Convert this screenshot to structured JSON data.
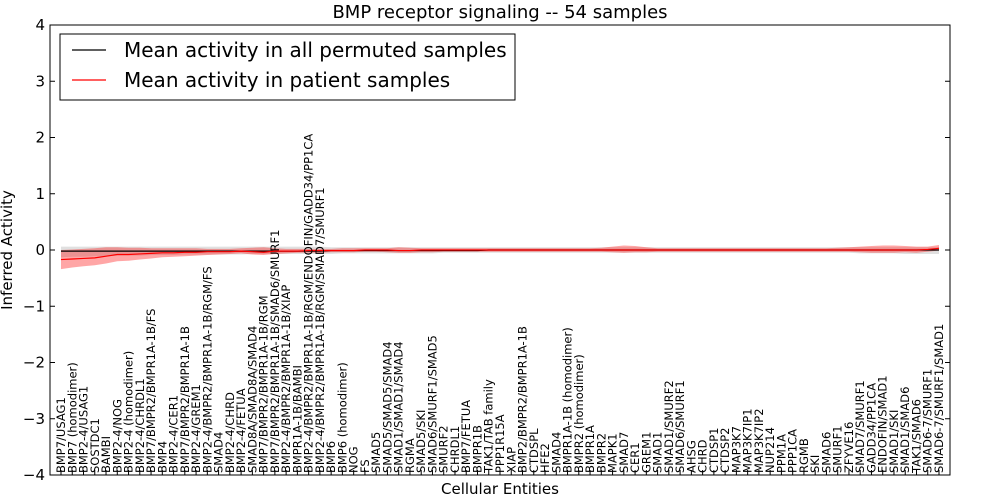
{
  "chart_data": {
    "type": "line",
    "title": "BMP receptor signaling -- 54 samples",
    "xlabel": "Cellular Entities",
    "ylabel": "Inferred Activity",
    "ylim": [
      -4,
      4
    ],
    "yticks": [
      -4,
      -3,
      -2,
      -1,
      0,
      1,
      2,
      3,
      4
    ],
    "legend_position": "top-left",
    "colors": {
      "permuted": "#000000",
      "patient": "#ff0000",
      "permuted_band": "#bbbbbb",
      "patient_band": "#ff0000"
    },
    "categories": [
      "BMP7/USAG1",
      "BMP7 (homodimer)",
      "BMP2-4/USAG1",
      "SOSTDC1",
      "BAMBI",
      "BMP2-4/NOG",
      "BMP2-4 (homodimer)",
      "BMP2-4/CHRDL1",
      "BMP7/BMPR2/BMPR1A-1B/FS",
      "BMP4",
      "BMP2-4/CER1",
      "BMP7/BMPR2/BMPR1A-1B",
      "BMP2-4/GREM1",
      "BMP2-4/BMPR2/BMPR1A-1B/RGM/FS",
      "SMAD4",
      "BMP2-4/CHRD",
      "BMP2-4/FETUA",
      "SMAD8A/SMAD8A/SMAD4",
      "BMP7/BMPR2/BMPR1A-1B/RGM",
      "BMP7/BMPR2/BMPR1A-1B/SMAD6/SMURF1",
      "BMP2-4/BMPR2/BMPR1A-1B/XIAP",
      "BMPR1A-1B/BAMBI",
      "BMP2-4/BMPR2/BMPR1A-1B/RGM/ENDOFIN/GADD34/PP1CA",
      "BMP2-4/BMPR2/BMPR1A-1B/RGM/SMAD7/SMURF1",
      "BMP6",
      "BMP6 (homodimer)",
      "NOG",
      "FS",
      "SMAD5",
      "SMAD5/SMAD5/SMAD4",
      "SMAD1/SMAD1/SMAD4",
      "RGMA",
      "SMAD5/SKI",
      "SMAD6/SMURF1/SMAD5",
      "SMURF2",
      "CHRDL1",
      "BMP7/FETUA",
      "BMPR1B",
      "TAK1/TAB family",
      "PPP1R15A",
      "XIAP",
      "BMP2/BMPR2/BMPR1A-1B",
      "CTDSPL",
      "HFE2",
      "SMAD4",
      "BMPR1A-1B (homodimer)",
      "BMPR2 (homodimer)",
      "BMPR1A",
      "BMPR2",
      "MAPK1",
      "SMAD7",
      "CER1",
      "GREM1",
      "SMAD1",
      "SMAD1/SMURF2",
      "SMAD6/SMURF1",
      "AHSG",
      "CHRD",
      "CTDSP1",
      "CTDSP2",
      "MAP3K7",
      "MAP3K7IP1",
      "MAP3K7IP2",
      "NUP214",
      "PPM1A",
      "PPP1CA",
      "RGMB",
      "SKI",
      "SMAD6",
      "SMURF1",
      "ZFYVE16",
      "SMAD7/SMURF1",
      "GADD34/PP1CA",
      "ENDOFIN/SMAD1",
      "SMAD1/SKI",
      "SMAD1/SMAD6",
      "TAK1/SMAD6",
      "SMAD6-7/SMURF1",
      "SMAD6-7/SMURF1/SMAD1"
    ],
    "series": [
      {
        "name": "Mean activity in all permuted samples",
        "values": [
          -0.02,
          -0.02,
          -0.02,
          -0.02,
          -0.02,
          -0.02,
          -0.02,
          -0.02,
          -0.02,
          -0.02,
          -0.02,
          -0.02,
          -0.02,
          -0.02,
          -0.02,
          -0.02,
          -0.02,
          -0.02,
          -0.02,
          -0.02,
          -0.02,
          -0.02,
          -0.02,
          -0.02,
          -0.01,
          -0.01,
          -0.01,
          -0.01,
          -0.01,
          -0.01,
          -0.01,
          -0.01,
          -0.01,
          -0.01,
          -0.01,
          -0.01,
          -0.01,
          -0.01,
          0,
          0,
          0,
          0,
          0,
          0,
          0,
          0,
          0,
          0,
          0,
          0,
          0,
          0,
          0,
          0,
          0,
          0,
          0,
          0,
          0,
          0,
          0,
          0,
          0,
          0,
          0,
          0,
          0,
          0,
          0,
          0,
          0,
          0,
          0,
          0,
          0,
          0,
          0,
          0,
          0
        ],
        "band_lower": [
          -0.13,
          -0.12,
          -0.12,
          -0.11,
          -0.11,
          -0.1,
          -0.1,
          -0.1,
          -0.09,
          -0.09,
          -0.09,
          -0.08,
          -0.08,
          -0.08,
          -0.08,
          -0.08,
          -0.08,
          -0.07,
          -0.07,
          -0.07,
          -0.07,
          -0.07,
          -0.07,
          -0.07,
          -0.07,
          -0.06,
          -0.06,
          -0.06,
          -0.06,
          -0.06,
          -0.06,
          -0.06,
          -0.06,
          -0.06,
          -0.05,
          -0.05,
          -0.05,
          -0.05,
          -0.05,
          -0.05,
          -0.05,
          -0.05,
          -0.05,
          -0.05,
          -0.05,
          -0.05,
          -0.05,
          -0.05,
          -0.05,
          -0.05,
          -0.05,
          -0.05,
          -0.05,
          -0.05,
          -0.05,
          -0.05,
          -0.05,
          -0.05,
          -0.05,
          -0.05,
          -0.05,
          -0.05,
          -0.05,
          -0.05,
          -0.05,
          -0.05,
          -0.05,
          -0.05,
          -0.05,
          -0.05,
          -0.05,
          -0.06,
          -0.06,
          -0.06,
          -0.06,
          -0.07,
          -0.07,
          -0.07,
          -0.07
        ],
        "band_upper": [
          0.06,
          0.06,
          0.06,
          0.06,
          0.06,
          0.06,
          0.06,
          0.06,
          0.06,
          0.06,
          0.06,
          0.06,
          0.06,
          0.06,
          0.06,
          0.06,
          0.06,
          0.06,
          0.06,
          0.06,
          0.06,
          0.06,
          0.06,
          0.06,
          0.05,
          0.05,
          0.05,
          0.05,
          0.05,
          0.05,
          0.05,
          0.05,
          0.05,
          0.05,
          0.05,
          0.05,
          0.05,
          0.05,
          0.05,
          0.05,
          0.05,
          0.05,
          0.05,
          0.05,
          0.05,
          0.05,
          0.05,
          0.05,
          0.05,
          0.05,
          0.05,
          0.05,
          0.05,
          0.05,
          0.05,
          0.05,
          0.05,
          0.05,
          0.05,
          0.05,
          0.05,
          0.05,
          0.05,
          0.05,
          0.05,
          0.05,
          0.05,
          0.05,
          0.05,
          0.05,
          0.05,
          0.05,
          0.05,
          0.05,
          0.05,
          0.05,
          0.05,
          0.05,
          0.05
        ]
      },
      {
        "name": "Mean activity in patient samples",
        "values": [
          -0.17,
          -0.16,
          -0.15,
          -0.14,
          -0.11,
          -0.08,
          -0.08,
          -0.07,
          -0.06,
          -0.05,
          -0.05,
          -0.04,
          -0.04,
          -0.03,
          -0.03,
          -0.03,
          -0.02,
          -0.03,
          -0.04,
          -0.02,
          -0.02,
          -0.02,
          -0.01,
          -0.01,
          -0.01,
          -0.01,
          -0.01,
          0,
          0,
          0,
          -0.01,
          -0.01,
          0,
          0,
          0,
          0,
          0,
          0,
          0,
          0,
          0,
          0,
          0,
          0,
          0,
          0,
          0,
          0,
          0,
          0,
          0,
          0,
          0,
          0,
          0,
          0,
          0,
          0,
          0,
          0,
          0,
          0,
          0,
          0,
          0,
          0,
          0,
          0,
          0,
          0,
          0,
          0,
          0,
          0,
          0,
          0,
          0,
          0.01,
          0.03
        ],
        "band_lower": [
          -0.34,
          -0.31,
          -0.29,
          -0.27,
          -0.24,
          -0.2,
          -0.19,
          -0.17,
          -0.15,
          -0.13,
          -0.12,
          -0.11,
          -0.1,
          -0.09,
          -0.08,
          -0.07,
          -0.06,
          -0.08,
          -0.09,
          -0.07,
          -0.06,
          -0.05,
          -0.05,
          -0.05,
          -0.04,
          -0.04,
          -0.04,
          -0.03,
          -0.03,
          -0.04,
          -0.05,
          -0.05,
          -0.04,
          -0.04,
          -0.03,
          -0.03,
          -0.03,
          -0.03,
          -0.03,
          -0.03,
          -0.03,
          -0.03,
          -0.03,
          -0.03,
          -0.03,
          -0.03,
          -0.03,
          -0.03,
          -0.03,
          -0.04,
          -0.05,
          -0.04,
          -0.04,
          -0.03,
          -0.03,
          -0.03,
          -0.03,
          -0.03,
          -0.03,
          -0.03,
          -0.03,
          -0.03,
          -0.03,
          -0.03,
          -0.03,
          -0.03,
          -0.03,
          -0.03,
          -0.03,
          -0.03,
          -0.03,
          -0.04,
          -0.05,
          -0.05,
          -0.05,
          -0.04,
          -0.05,
          -0.03,
          -0.01
        ],
        "band_upper": [
          0.0,
          0.01,
          0.02,
          0.03,
          0.05,
          0.05,
          0.04,
          0.04,
          0.03,
          0.03,
          0.03,
          0.03,
          0.03,
          0.02,
          0.02,
          0.02,
          0.03,
          0.04,
          0.05,
          0.03,
          0.02,
          0.02,
          0.02,
          0.02,
          0.02,
          0.03,
          0.03,
          0.03,
          0.03,
          0.03,
          0.05,
          0.04,
          0.03,
          0.03,
          0.03,
          0.03,
          0.03,
          0.03,
          0.03,
          0.03,
          0.03,
          0.03,
          0.03,
          0.03,
          0.03,
          0.03,
          0.03,
          0.03,
          0.04,
          0.06,
          0.08,
          0.07,
          0.05,
          0.03,
          0.03,
          0.03,
          0.03,
          0.03,
          0.03,
          0.03,
          0.03,
          0.03,
          0.03,
          0.03,
          0.03,
          0.03,
          0.03,
          0.03,
          0.03,
          0.04,
          0.05,
          0.06,
          0.07,
          0.08,
          0.08,
          0.07,
          0.06,
          0.06,
          0.09
        ]
      }
    ]
  }
}
